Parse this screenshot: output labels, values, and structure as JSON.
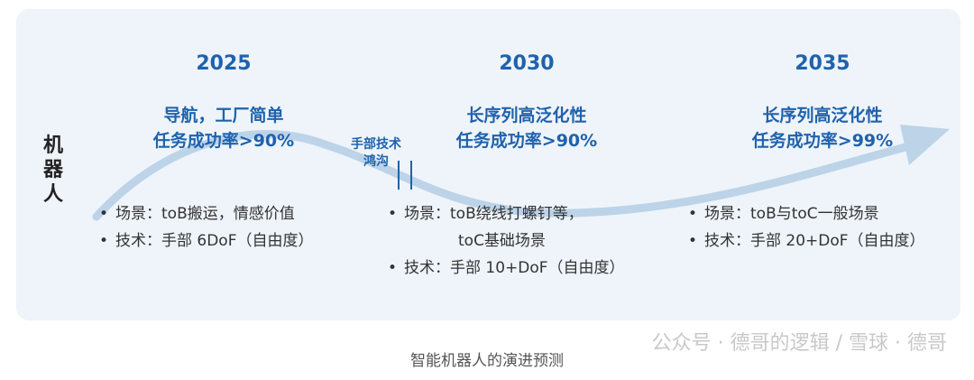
{
  "side_label": "机器人",
  "stages": [
    {
      "year": "2025",
      "goal": [
        "导航，工厂简单",
        "任务成功率>90%"
      ],
      "bullets": [
        [
          "场景：toB搬运，情感价值"
        ],
        [
          "技术：手部 6DoF（自由度）"
        ]
      ]
    },
    {
      "year": "2030",
      "goal": [
        "长序列高泛化性",
        "任务成功率>90%"
      ],
      "bullets": [
        [
          "场景：toB绕线打螺钉等，",
          "toC基础场景"
        ],
        [
          "技术：手部 10+DoF（自由度）"
        ]
      ]
    },
    {
      "year": "2035",
      "goal": [
        "长序列高泛化性",
        "任务成功率>99%"
      ],
      "bullets": [
        [
          "场景：toB与toC一般场景"
        ],
        [
          "技术：手部 20+DoF（自由度）"
        ]
      ]
    }
  ],
  "gap_label": [
    "手部技术",
    "鸿沟"
  ],
  "caption": "智能机器人的演进预测",
  "watermark": "公众号 · 德哥的逻辑 / 雪球 · 德哥",
  "colors": {
    "accent": "#1f62ad",
    "panel": "#eef4f9",
    "arrow": "#bcd3e8"
  }
}
